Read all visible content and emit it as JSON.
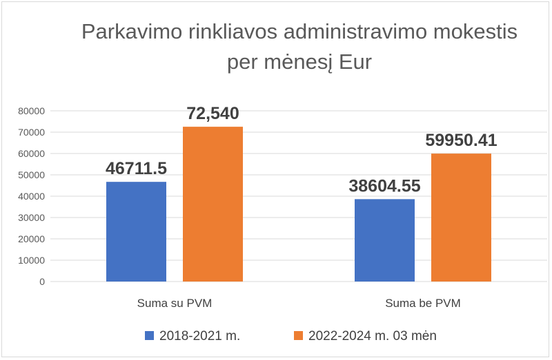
{
  "chart_data": {
    "type": "bar",
    "title": [
      "Parkavimo rinkliavos administravimo mokestis",
      "per mėnesį Eur"
    ],
    "categories": [
      "Suma su PVM",
      "Suma be PVM"
    ],
    "series": [
      {
        "name": "2018-2021 m.",
        "color": "#4472C4",
        "values": [
          46711.5,
          38604.55
        ],
        "labels": [
          "46711.5",
          "38604.55"
        ]
      },
      {
        "name": "2022-2024 m. 03 mėn",
        "color": "#ED7D31",
        "values": [
          72540,
          59950.41
        ],
        "labels": [
          "72,540",
          "59950.41"
        ]
      }
    ],
    "ylim": [
      0,
      80000
    ],
    "yticks": [
      0,
      10000,
      20000,
      30000,
      40000,
      50000,
      60000,
      70000,
      80000
    ],
    "grid": true,
    "legend_position": "bottom"
  }
}
